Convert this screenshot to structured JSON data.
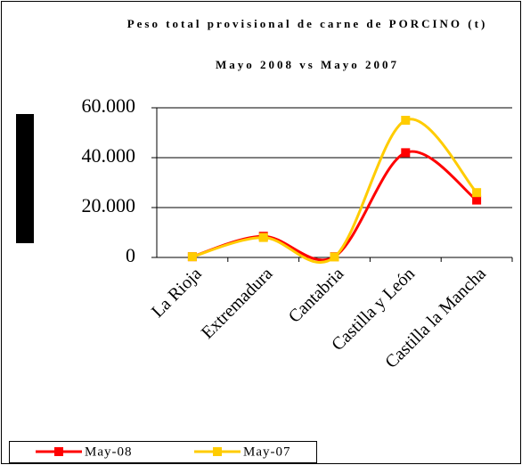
{
  "chart_data": {
    "type": "line",
    "title": "Peso total provisional de carne de PORCINO (t)",
    "subtitle": "Mayo 2008 vs Mayo 2007",
    "categories": [
      "La Rioja",
      "Extremadura",
      "Cantabria",
      "Castilla y León",
      "Castilla la Mancha"
    ],
    "series": [
      {
        "name": "May-08",
        "color": "#ff0000",
        "values": [
          300,
          8500,
          300,
          42000,
          23000
        ]
      },
      {
        "name": "May-07",
        "color": "#ffcc00",
        "values": [
          300,
          8000,
          200,
          55000,
          26000
        ]
      }
    ],
    "ylim": [
      0,
      60000
    ],
    "yticks": [
      0,
      {
        "value": 20000,
        "label": "20.000"
      },
      {
        "value": 40000,
        "label": "40.000"
      },
      {
        "value": 60000,
        "label": "60.000"
      }
    ],
    "grid": true,
    "smooth": true,
    "legend": "bottom-left"
  }
}
